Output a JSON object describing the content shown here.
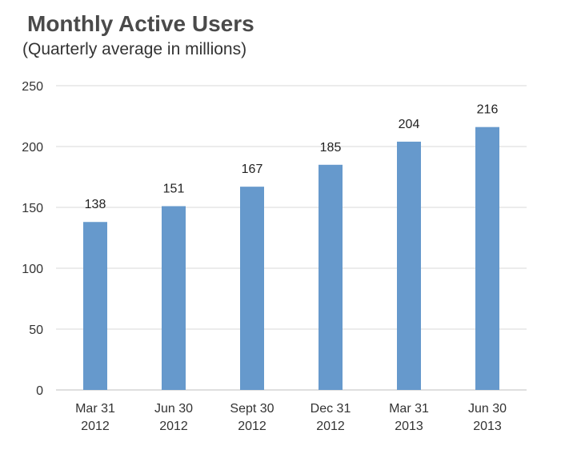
{
  "chart_data": {
    "type": "bar",
    "title": "Monthly Active Users",
    "subtitle": "(Quarterly average in millions)",
    "xlabel": "",
    "ylabel": "",
    "categories": [
      [
        "Mar 31",
        "2012"
      ],
      [
        "Jun 30",
        "2012"
      ],
      [
        "Sept 30",
        "2012"
      ],
      [
        "Dec 31",
        "2012"
      ],
      [
        "Mar 31",
        "2013"
      ],
      [
        "Jun 30",
        "2013"
      ]
    ],
    "values": [
      138,
      151,
      167,
      185,
      204,
      216
    ],
    "data_labels": [
      "138",
      "151",
      "167",
      "185",
      "204",
      "216"
    ],
    "yticks": [
      0,
      50,
      100,
      150,
      200,
      250
    ],
    "ylim": [
      0,
      250
    ],
    "grid": true,
    "legend": "none",
    "colors": {
      "bar": "#6699cc",
      "grid": "#d9d9d9",
      "axis": "#bfbfbf"
    }
  }
}
